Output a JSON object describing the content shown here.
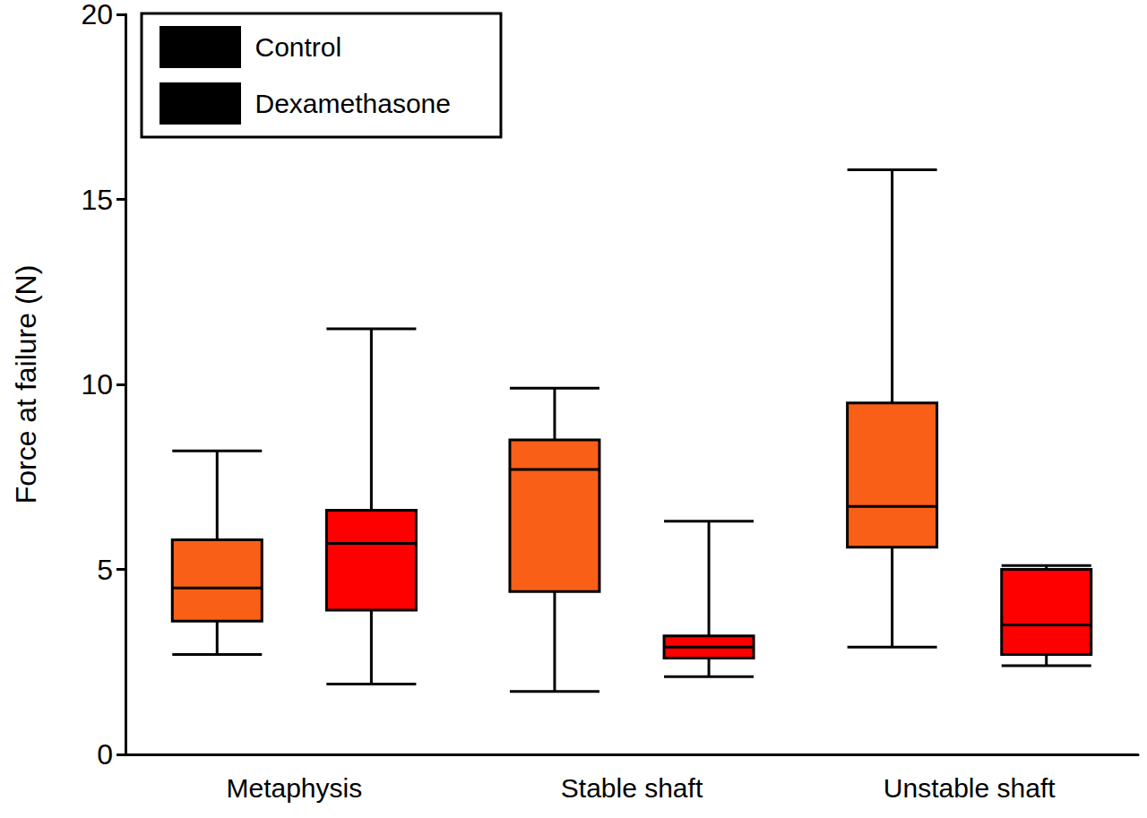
{
  "chart_data": {
    "type": "boxplot",
    "y_label": "Force at failure (N)",
    "categories": [
      "Metaphysis",
      "Stable shaft",
      "Unstable shaft"
    ],
    "series": [
      {
        "name": "Control",
        "color": "#f95f17",
        "values": [
          [
            2.7,
            3.6,
            4.5,
            5.8,
            8.2
          ],
          [
            1.7,
            4.4,
            7.7,
            8.5,
            9.9
          ],
          [
            2.9,
            5.6,
            6.7,
            9.5,
            15.8
          ]
        ]
      },
      {
        "name": "Dexamethasone",
        "color": "#fe0000",
        "values": [
          [
            1.9,
            3.9,
            5.7,
            6.6,
            11.5
          ],
          [
            2.1,
            2.6,
            2.9,
            3.2,
            6.3
          ],
          [
            2.4,
            2.7,
            3.5,
            5.0,
            5.1
          ]
        ]
      }
    ],
    "ylim": [
      0,
      20
    ],
    "yticks": [
      0,
      5,
      10,
      15,
      20
    ],
    "grid": false,
    "legend": "upper left"
  }
}
